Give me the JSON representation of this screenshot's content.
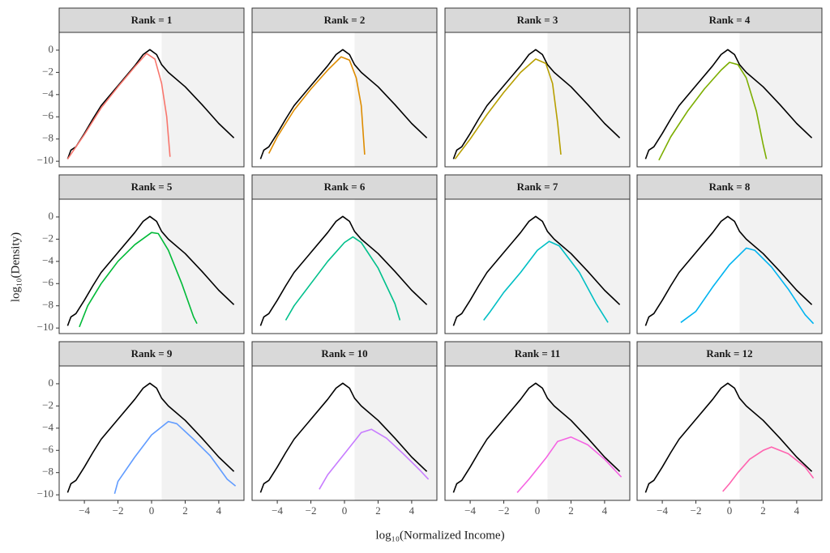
{
  "chart_data": {
    "type": "line",
    "x_label": "log₁₀(Normalized Income)",
    "y_label": "log₁₀(Density)",
    "xlim": [
      -5.5,
      5.5
    ],
    "ylim": [
      -10.5,
      1.6
    ],
    "xticks": [
      {
        "value": -4,
        "label": "−4"
      },
      {
        "value": -2,
        "label": "−2"
      },
      0,
      2,
      4
    ],
    "yticks": [
      0,
      {
        "value": -2,
        "label": "−2"
      },
      {
        "value": -4,
        "label": "−4"
      },
      {
        "value": -6,
        "label": "−6"
      },
      {
        "value": -8,
        "label": "−8"
      },
      {
        "value": -10,
        "label": "−10"
      }
    ],
    "shaded_xrange": [
      0.6,
      5.5
    ],
    "reference": {
      "color": "#000000",
      "x": [
        -5,
        -4.8,
        -4.5,
        -4,
        -3.5,
        -3,
        -2,
        -1,
        -0.5,
        -0.1,
        0.3,
        0.6,
        1,
        2,
        3,
        4,
        4.9
      ],
      "values": [
        -9.8,
        -9,
        -8.7,
        -7.5,
        -6.2,
        -5,
        -3.2,
        -1.4,
        -0.4,
        0.05,
        -0.4,
        -1.3,
        -2,
        -3.3,
        -4.9,
        -6.6,
        -7.9
      ]
    },
    "panels": [
      {
        "title": "Rank = 1",
        "color": "#F8766D",
        "x": [
          -5,
          -4,
          -3,
          -2,
          -1,
          -0.3,
          0.2,
          0.6,
          0.9,
          1.1
        ],
        "values": [
          -9.8,
          -7.6,
          -5.2,
          -3.3,
          -1.5,
          -0.3,
          -0.8,
          -3,
          -6,
          -9.6
        ]
      },
      {
        "title": "Rank = 2",
        "color": "#DE8C00",
        "x": [
          -4.5,
          -4,
          -3,
          -2,
          -1,
          -0.2,
          0.3,
          0.7,
          1.0,
          1.2
        ],
        "values": [
          -9.3,
          -7.8,
          -5.4,
          -3.5,
          -1.8,
          -0.6,
          -0.9,
          -2.5,
          -5,
          -9.4
        ]
      },
      {
        "title": "Rank = 3",
        "color": "#B79F00",
        "x": [
          -4.9,
          -4,
          -3,
          -2,
          -1,
          -0.1,
          0.5,
          0.9,
          1.2,
          1.4
        ],
        "values": [
          -9.8,
          -8,
          -5.8,
          -3.8,
          -2,
          -0.8,
          -1.2,
          -3,
          -6.5,
          -9.4
        ]
      },
      {
        "title": "Rank = 4",
        "color": "#7CAE00",
        "x": [
          -4.2,
          -3.5,
          -2.5,
          -1.5,
          -0.5,
          0,
          0.5,
          1,
          1.6,
          2,
          2.2
        ],
        "values": [
          -9.9,
          -7.8,
          -5.5,
          -3.5,
          -1.8,
          -1.1,
          -1.3,
          -2.5,
          -5.5,
          -8.5,
          -9.8
        ]
      },
      {
        "title": "Rank = 5",
        "color": "#00BA38",
        "x": [
          -4.3,
          -3.8,
          -3,
          -2,
          -1,
          0,
          0.4,
          1,
          1.8,
          2.5,
          2.7
        ],
        "values": [
          -9.9,
          -8,
          -6,
          -4,
          -2.5,
          -1.4,
          -1.5,
          -3,
          -6,
          -9,
          -9.6
        ]
      },
      {
        "title": "Rank = 6",
        "color": "#00C08B",
        "x": [
          -3.5,
          -3,
          -2,
          -1,
          0,
          0.5,
          1,
          2,
          3,
          3.3
        ],
        "values": [
          -9.3,
          -8,
          -6,
          -4,
          -2.3,
          -1.8,
          -2.3,
          -4.6,
          -7.8,
          -9.3
        ]
      },
      {
        "title": "Rank = 7",
        "color": "#00BFC4",
        "x": [
          -3.2,
          -2.8,
          -2,
          -1,
          0,
          0.7,
          1.3,
          2.5,
          3.5,
          4.2
        ],
        "values": [
          -9.3,
          -8.5,
          -6.8,
          -5,
          -3,
          -2.2,
          -2.6,
          -5,
          -7.8,
          -9.5
        ]
      },
      {
        "title": "Rank = 8",
        "color": "#00B4F0",
        "x": [
          -2.9,
          -2,
          -1,
          0,
          1,
          1.5,
          2.5,
          3.5,
          4.5,
          5
        ],
        "values": [
          -9.5,
          -8.5,
          -6.3,
          -4.3,
          -2.8,
          -3,
          -4.5,
          -6.5,
          -8.8,
          -9.6
        ]
      },
      {
        "title": "Rank = 9",
        "color": "#619CFF",
        "x": [
          -2.2,
          -2,
          -1,
          0,
          1,
          1.5,
          2.5,
          3.5,
          4.5,
          5
        ],
        "values": [
          -9.9,
          -8.8,
          -6.6,
          -4.6,
          -3.4,
          -3.6,
          -5,
          -6.5,
          -8.6,
          -9.2
        ]
      },
      {
        "title": "Rank = 10",
        "color": "#C77CFF",
        "x": [
          -1.5,
          -1,
          0,
          1,
          1.6,
          2.5,
          3.5,
          4.5,
          5
        ],
        "values": [
          -9.5,
          -8.2,
          -6.3,
          -4.4,
          -4.1,
          -4.9,
          -6.3,
          -7.8,
          -8.6
        ]
      },
      {
        "title": "Rank = 11",
        "color": "#F564E3",
        "x": [
          -1.2,
          -0.5,
          0.5,
          1.2,
          2,
          3,
          4,
          5
        ],
        "values": [
          -9.8,
          -8.6,
          -6.7,
          -5.2,
          -4.8,
          -5.5,
          -6.8,
          -8.4
        ]
      },
      {
        "title": "Rank = 12",
        "color": "#FF64B0",
        "x": [
          -0.4,
          0,
          0.5,
          1.2,
          2,
          2.5,
          3.5,
          4.5,
          5
        ],
        "values": [
          -9.7,
          -9,
          -8,
          -6.8,
          -6,
          -5.7,
          -6.3,
          -7.5,
          -8.5
        ]
      }
    ]
  }
}
